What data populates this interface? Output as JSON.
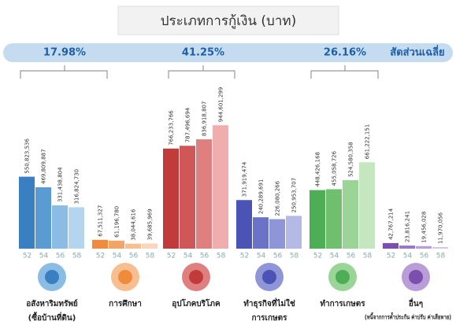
{
  "chart_data": {
    "type": "bar",
    "title": "ประเภทการกู้เงิน (บาท)",
    "shares": [
      "17.98%",
      "41.25%",
      "26.16%"
    ],
    "share_label": "สัดส่วนเฉลี่ย",
    "years": [
      "52",
      "54",
      "56",
      "58"
    ],
    "groups": [
      {
        "name": "อสังหาริมทรัพย์",
        "note": "(ซื้อบ้านที่ดิน)",
        "colors": [
          "#3a7fc1",
          "#5a9bd4",
          "#8bbce3",
          "#b5d4ed"
        ],
        "values": [
          550823536,
          469809887,
          331438804,
          316824730
        ],
        "value_labels": [
          "550,823,536",
          "469,809,887",
          "331,438,804",
          "316,824,730"
        ]
      },
      {
        "name": "การศึกษา",
        "colors": [
          "#f08a3c",
          "#f4a466",
          "#f7bf91",
          "#fad7bb"
        ],
        "values": [
          67511327,
          61196780,
          38044616,
          39685969
        ],
        "value_labels": [
          "67,511,327",
          "61,196,780",
          "38,044,616",
          "39,685,969"
        ]
      },
      {
        "name": "อุปโภคบริโภค",
        "colors": [
          "#c23b3b",
          "#d05757",
          "#df8080",
          "#efadad"
        ],
        "values": [
          766233766,
          787496694,
          836918807,
          944601299
        ],
        "value_labels": [
          "766,233,766",
          "787,496,694",
          "836,918,807",
          "944,601,299"
        ]
      },
      {
        "name": "ทำธุรกิจที่ไม่ใช่",
        "note": "การเกษตร",
        "colors": [
          "#4b53b5",
          "#6b73c6",
          "#8f96d7",
          "#b4b9e6"
        ],
        "values": [
          371919474,
          240289691,
          226080266,
          250953707
        ],
        "value_labels": [
          "371,919,474",
          "240,289,691",
          "226,080,266",
          "250,953,707"
        ]
      },
      {
        "name": "ทำการเกษตร",
        "colors": [
          "#4dae55",
          "#70bf6f",
          "#9ad497",
          "#c4e7c0"
        ],
        "values": [
          448426168,
          455058726,
          524580358,
          661222151
        ],
        "value_labels": [
          "448,426,168",
          "455,058,726",
          "524,580,358",
          "661,222,151"
        ]
      },
      {
        "name": "อื่นๆ",
        "note": "(หนี้จากการค้ำประกัน ค่าปรับ ค่าเสียหาย)",
        "colors": [
          "#7b4fb0",
          "#9a76c4",
          "#b89dd6",
          "#d5c4e8"
        ],
        "values": [
          42767214,
          23816241,
          19456028,
          11970056
        ],
        "value_labels": [
          "42,767,214",
          "23,816,241",
          "19,456,028",
          "11,970,056"
        ]
      }
    ],
    "ylim": [
      0,
      1000000000
    ]
  }
}
